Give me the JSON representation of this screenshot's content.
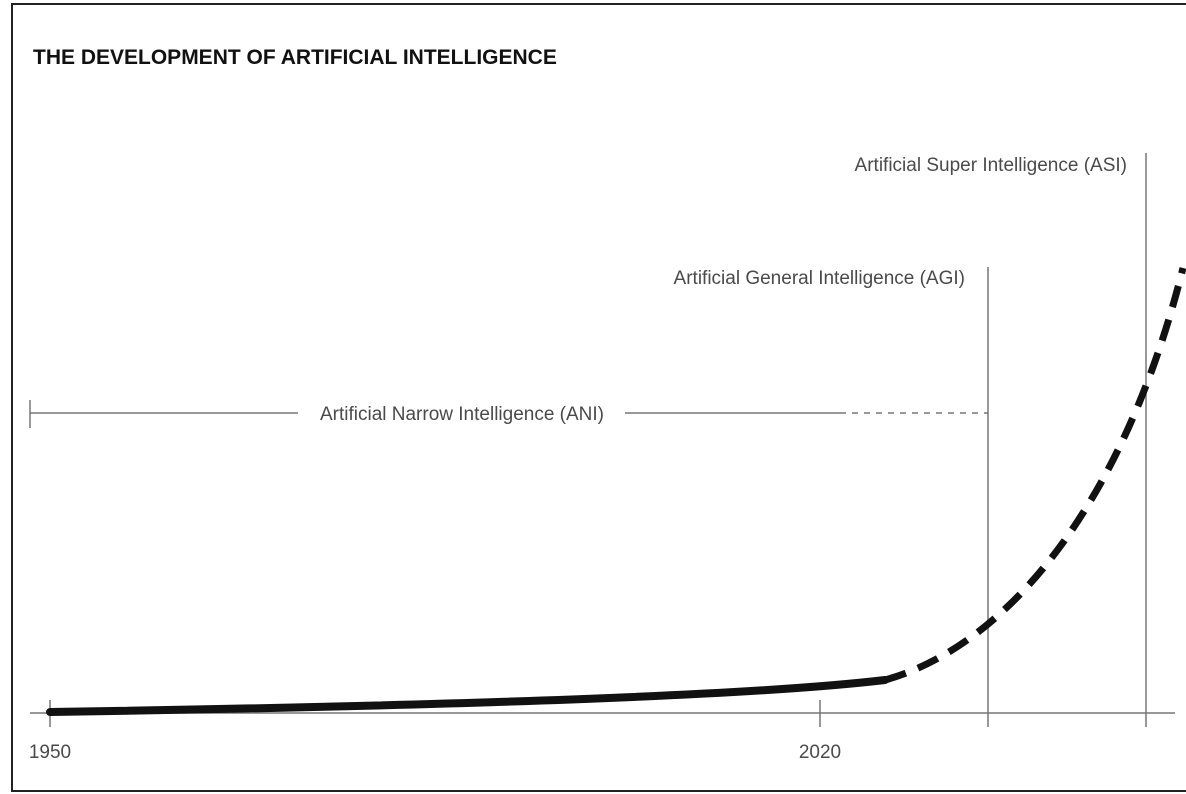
{
  "title": "THE DEVELOPMENT OF ARTIFICIAL INTELLIGENCE",
  "stages": {
    "ani": "Artificial Narrow Intelligence (ANI)",
    "agi": "Artificial General Intelligence (AGI)",
    "asi": "Artificial Super Intelligence (ASI)"
  },
  "axis": {
    "labels": [
      "1950",
      "2020"
    ]
  }
}
